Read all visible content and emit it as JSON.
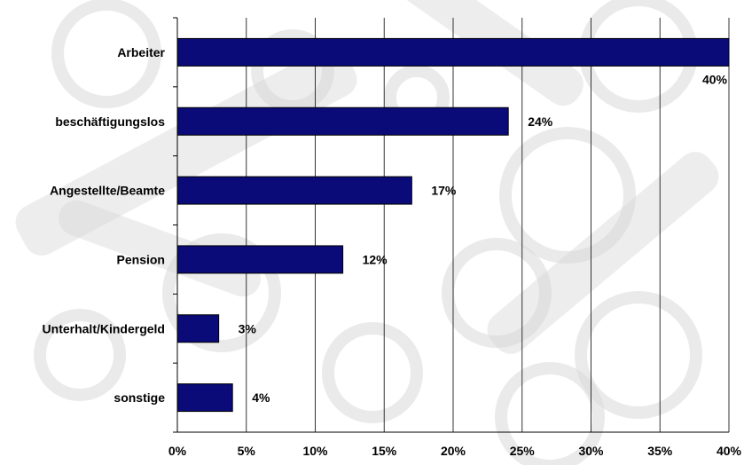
{
  "chart_data": {
    "type": "bar",
    "orientation": "horizontal",
    "categories": [
      "Arbeiter",
      "beschäftigungslos",
      "Angestellte/Beamte",
      "Pension",
      "Unterhalt/Kindergeld",
      "sonstige"
    ],
    "values": [
      40,
      24,
      17,
      12,
      3,
      4
    ],
    "data_labels": [
      "40%",
      "24%",
      "17%",
      "12%",
      "3%",
      "4%"
    ],
    "xlim": [
      0,
      40
    ],
    "xticks": [
      0,
      5,
      10,
      15,
      20,
      25,
      30,
      35,
      40
    ],
    "xtick_labels": [
      "0%",
      "5%",
      "10%",
      "15%",
      "20%",
      "25%",
      "30%",
      "35%",
      "40%"
    ],
    "title": "",
    "xlabel": "",
    "ylabel": "",
    "grid": "vertical lines",
    "legend": "none",
    "colors": {
      "bar_fill": "#0a0a78",
      "bar_stroke": "#000000",
      "grid": "#333333",
      "background": "#ffffff",
      "background_pattern": "#d8d8d8"
    }
  }
}
